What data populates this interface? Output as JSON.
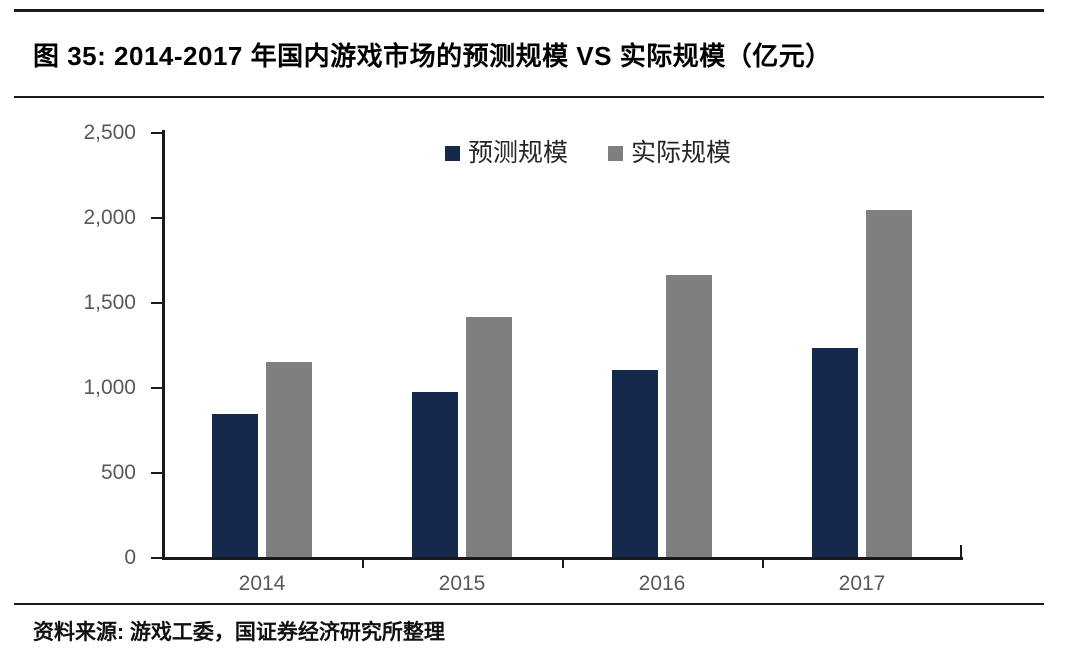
{
  "header": {
    "title": "图 35:  2014-2017 年国内游戏市场的预测规模 VS 实际规模（亿元）"
  },
  "footer": {
    "source": "资料来源: 游戏工委，国证券经济研究所整理"
  },
  "colors": {
    "forecast": "#15294D",
    "actual": "#7F7F7F",
    "axis": "#1A1A1A",
    "tick_label": "#595959"
  },
  "chart_data": {
    "type": "bar",
    "title": "2014-2017 年国内游戏市场的预测规模 VS 实际规模（亿元）",
    "xlabel": "",
    "ylabel": "",
    "categories": [
      "2014",
      "2015",
      "2016",
      "2017"
    ],
    "series": [
      {
        "name": "预测规模",
        "color": "#15294D",
        "values": [
          840,
          970,
          1100,
          1230
        ]
      },
      {
        "name": "实际规模",
        "color": "#7F7F7F",
        "values": [
          1150,
          1410,
          1660,
          2040
        ]
      }
    ],
    "ylim": [
      0,
      2500
    ],
    "ytick_values": [
      0,
      500,
      1000,
      1500,
      2000,
      2500
    ],
    "ytick_labels": [
      "0",
      "500",
      "1,000",
      "1,500",
      "2,000",
      "2,500"
    ],
    "grid": false,
    "legend_position": "top-center"
  }
}
